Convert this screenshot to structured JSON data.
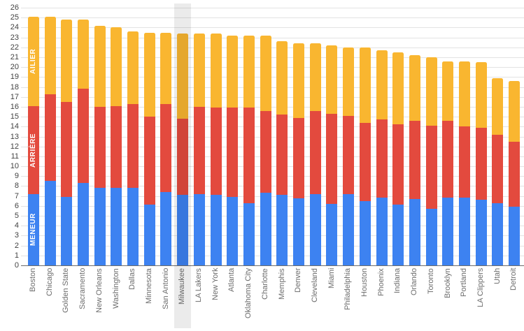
{
  "chart_data": {
    "type": "bar",
    "subtype": "stacked-vertical",
    "title": "",
    "xlabel": "",
    "ylabel": "",
    "ylim": [
      0,
      26
    ],
    "y_ticks": [
      0,
      1,
      2,
      3,
      4,
      5,
      6,
      7,
      8,
      9,
      10,
      11,
      12,
      13,
      14,
      15,
      16,
      17,
      18,
      19,
      20,
      21,
      22,
      23,
      24,
      25,
      26
    ],
    "grid": true,
    "legend_position": "inside-first-bar",
    "highlighted_category": "Milwaukee",
    "categories": [
      "Boston",
      "Chicago",
      "Golden State",
      "Sacramento",
      "New Orleans",
      "Washington",
      "Dallas",
      "Minnesota",
      "San Antonio",
      "Milwaukee",
      "LA Lakers",
      "New York",
      "Atlanta",
      "Oklahoma City",
      "Charlotte",
      "Memphis",
      "Denver",
      "Cleveland",
      "Miami",
      "Philadelphia",
      "Houston",
      "Phoenix",
      "Indiana",
      "Orlando",
      "Toronto",
      "Brooklyn",
      "Portland",
      "LA Clippers",
      "Utah",
      "Detroit"
    ],
    "series": [
      {
        "name": "MENEUR",
        "color": "#3d82f1",
        "values": [
          7.2,
          8.5,
          6.9,
          8.3,
          7.8,
          7.8,
          7.8,
          6.1,
          7.4,
          7.1,
          7.2,
          7.1,
          6.9,
          6.3,
          7.3,
          7.1,
          6.8,
          7.2,
          6.2,
          7.2,
          6.5,
          6.8,
          6.1,
          6.7,
          5.7,
          6.8,
          6.8,
          6.6,
          6.3,
          5.9
        ]
      },
      {
        "name": "ARRIÈRE",
        "color": "#e34a3e",
        "values": [
          8.9,
          8.8,
          9.6,
          9.5,
          8.2,
          8.3,
          8.5,
          8.9,
          8.9,
          7.7,
          8.8,
          8.8,
          9.0,
          9.6,
          8.3,
          8.1,
          8.1,
          8.4,
          9.1,
          7.9,
          7.9,
          7.9,
          8.1,
          7.9,
          8.4,
          7.8,
          7.2,
          7.3,
          6.9,
          6.6
        ]
      },
      {
        "name": "AILIER",
        "color": "#f9b630",
        "values": [
          9.0,
          7.8,
          8.3,
          7.0,
          8.2,
          7.9,
          7.3,
          8.5,
          7.2,
          8.6,
          7.4,
          7.5,
          7.3,
          7.3,
          7.6,
          7.4,
          7.5,
          6.8,
          6.9,
          6.9,
          7.6,
          7.0,
          7.3,
          6.6,
          6.9,
          6.0,
          6.6,
          6.6,
          5.7,
          6.1
        ]
      }
    ],
    "colors": {
      "meneur": "#3d82f1",
      "arriere": "#e34a3e",
      "ailier": "#f9b630",
      "gridline": "#e3e3e3",
      "axis_text": "#424242",
      "category_text": "#6d6d6d",
      "highlight_band": "#ebebeb"
    }
  }
}
